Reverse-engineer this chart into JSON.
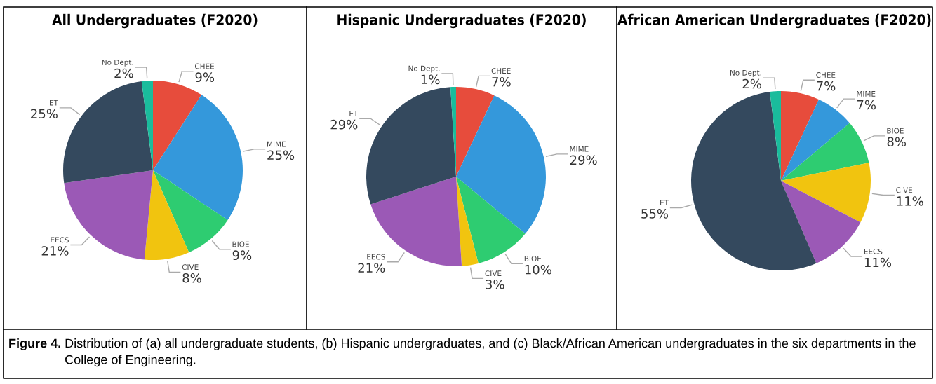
{
  "chart_data": [
    {
      "type": "pie",
      "title": "All Undergraduates (F2020)",
      "categories": [
        "CHEE",
        "MIME",
        "BIOE",
        "CIVE",
        "EECS",
        "ET",
        "No Dept."
      ],
      "values": [
        9,
        25,
        9,
        8,
        21,
        25,
        2
      ],
      "value_labels": [
        "9%",
        "25%",
        "9%",
        "8%",
        "21%",
        "25%",
        "2%"
      ],
      "colors": [
        "#e74c3c",
        "#3498db",
        "#2ecc71",
        "#f1c40f",
        "#9b59b6",
        "#34495e",
        "#1abc9c"
      ],
      "legend": false,
      "annotations": [
        "Figure 4.",
        "Distribution of (a) all undergraduate students, (b) Hispanic undergraduates, and (c) Black/African American undergraduates in the six departments in the College of Engineering."
      ]
    },
    {
      "type": "pie",
      "title": "Hispanic Undergraduates (F2020)",
      "categories": [
        "CHEE",
        "MIME",
        "BIOE",
        "CIVE",
        "EECS",
        "ET",
        "No Dept."
      ],
      "values": [
        7,
        29,
        10,
        3,
        21,
        29,
        1
      ],
      "value_labels": [
        "7%",
        "29%",
        "10%",
        "3%",
        "21%",
        "29%",
        "1%"
      ],
      "colors": [
        "#e74c3c",
        "#3498db",
        "#2ecc71",
        "#f1c40f",
        "#9b59b6",
        "#34495e",
        "#1abc9c"
      ],
      "legend": false
    },
    {
      "type": "pie",
      "title": "African American Undergraduates (F2020)",
      "categories": [
        "CHEE",
        "MIME",
        "BIOE",
        "CIVE",
        "EECS",
        "ET",
        "No Dept."
      ],
      "values": [
        7,
        7,
        8,
        11,
        11,
        55,
        2
      ],
      "value_labels": [
        "7%",
        "7%",
        "8%",
        "11%",
        "11%",
        "55%",
        "2%"
      ],
      "colors": [
        "#e74c3c",
        "#3498db",
        "#2ecc71",
        "#f1c40f",
        "#9b59b6",
        "#34495e",
        "#1abc9c"
      ],
      "legend": false
    }
  ]
}
